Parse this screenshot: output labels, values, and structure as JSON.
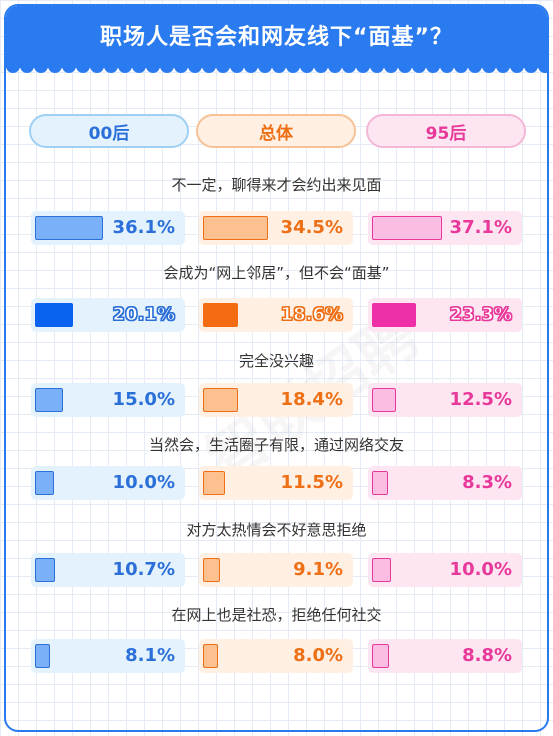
{
  "title": "职场人是否会和网友线下“面基”？",
  "watermark": "智联招聘",
  "groups": [
    {
      "label": "00后",
      "color": "#2b6fd8",
      "chip_bg": "#e3f2fd",
      "chip_border": "#9fd0f3",
      "cell_bg": "#e3f2fd",
      "bar_light": "#79b0f8",
      "bar_dark": "#0a63f0"
    },
    {
      "label": "总体",
      "color": "#ee6f15",
      "chip_bg": "#fff0e3",
      "chip_border": "#f7c296",
      "cell_bg": "#fff0e3",
      "bar_light": "#fdc08f",
      "bar_dark": "#f36c12"
    },
    {
      "label": "95后",
      "color": "#e8389a",
      "chip_bg": "#fde6f1",
      "chip_border": "#f4b7d6",
      "cell_bg": "#fde6f1",
      "bar_light": "#fbbde2",
      "bar_dark": "#ef2fa7"
    }
  ],
  "chart_data": {
    "type": "bar",
    "categories": [
      "不一定，聊得来才会约出来见面",
      "会成为“网上邻居”，但不会“面基”",
      "完全没兴趣",
      "当然会，生活圈子有限，通过网络交友",
      "对方太热情会不好意思拒绝",
      "在网上也是社恐，拒绝任何社交"
    ],
    "series": [
      {
        "name": "00后",
        "values": [
          36.1,
          20.1,
          15.0,
          10.0,
          10.7,
          8.1
        ],
        "labels": [
          "36.1%",
          "20.1%",
          "15.0%",
          "10.0%",
          "10.7%",
          "8.1%"
        ]
      },
      {
        "name": "总体",
        "values": [
          34.5,
          18.6,
          18.4,
          11.5,
          9.1,
          8.0
        ],
        "labels": [
          "34.5%",
          "18.6%",
          "18.4%",
          "11.5%",
          "9.1%",
          "8.0%"
        ]
      },
      {
        "name": "95后",
        "values": [
          37.1,
          23.3,
          12.5,
          8.3,
          10.0,
          8.8
        ],
        "labels": [
          "37.1%",
          "23.3%",
          "12.5%",
          "8.3%",
          "10.0%",
          "8.8%"
        ]
      }
    ],
    "highlight_row": 1,
    "unit": "%"
  }
}
